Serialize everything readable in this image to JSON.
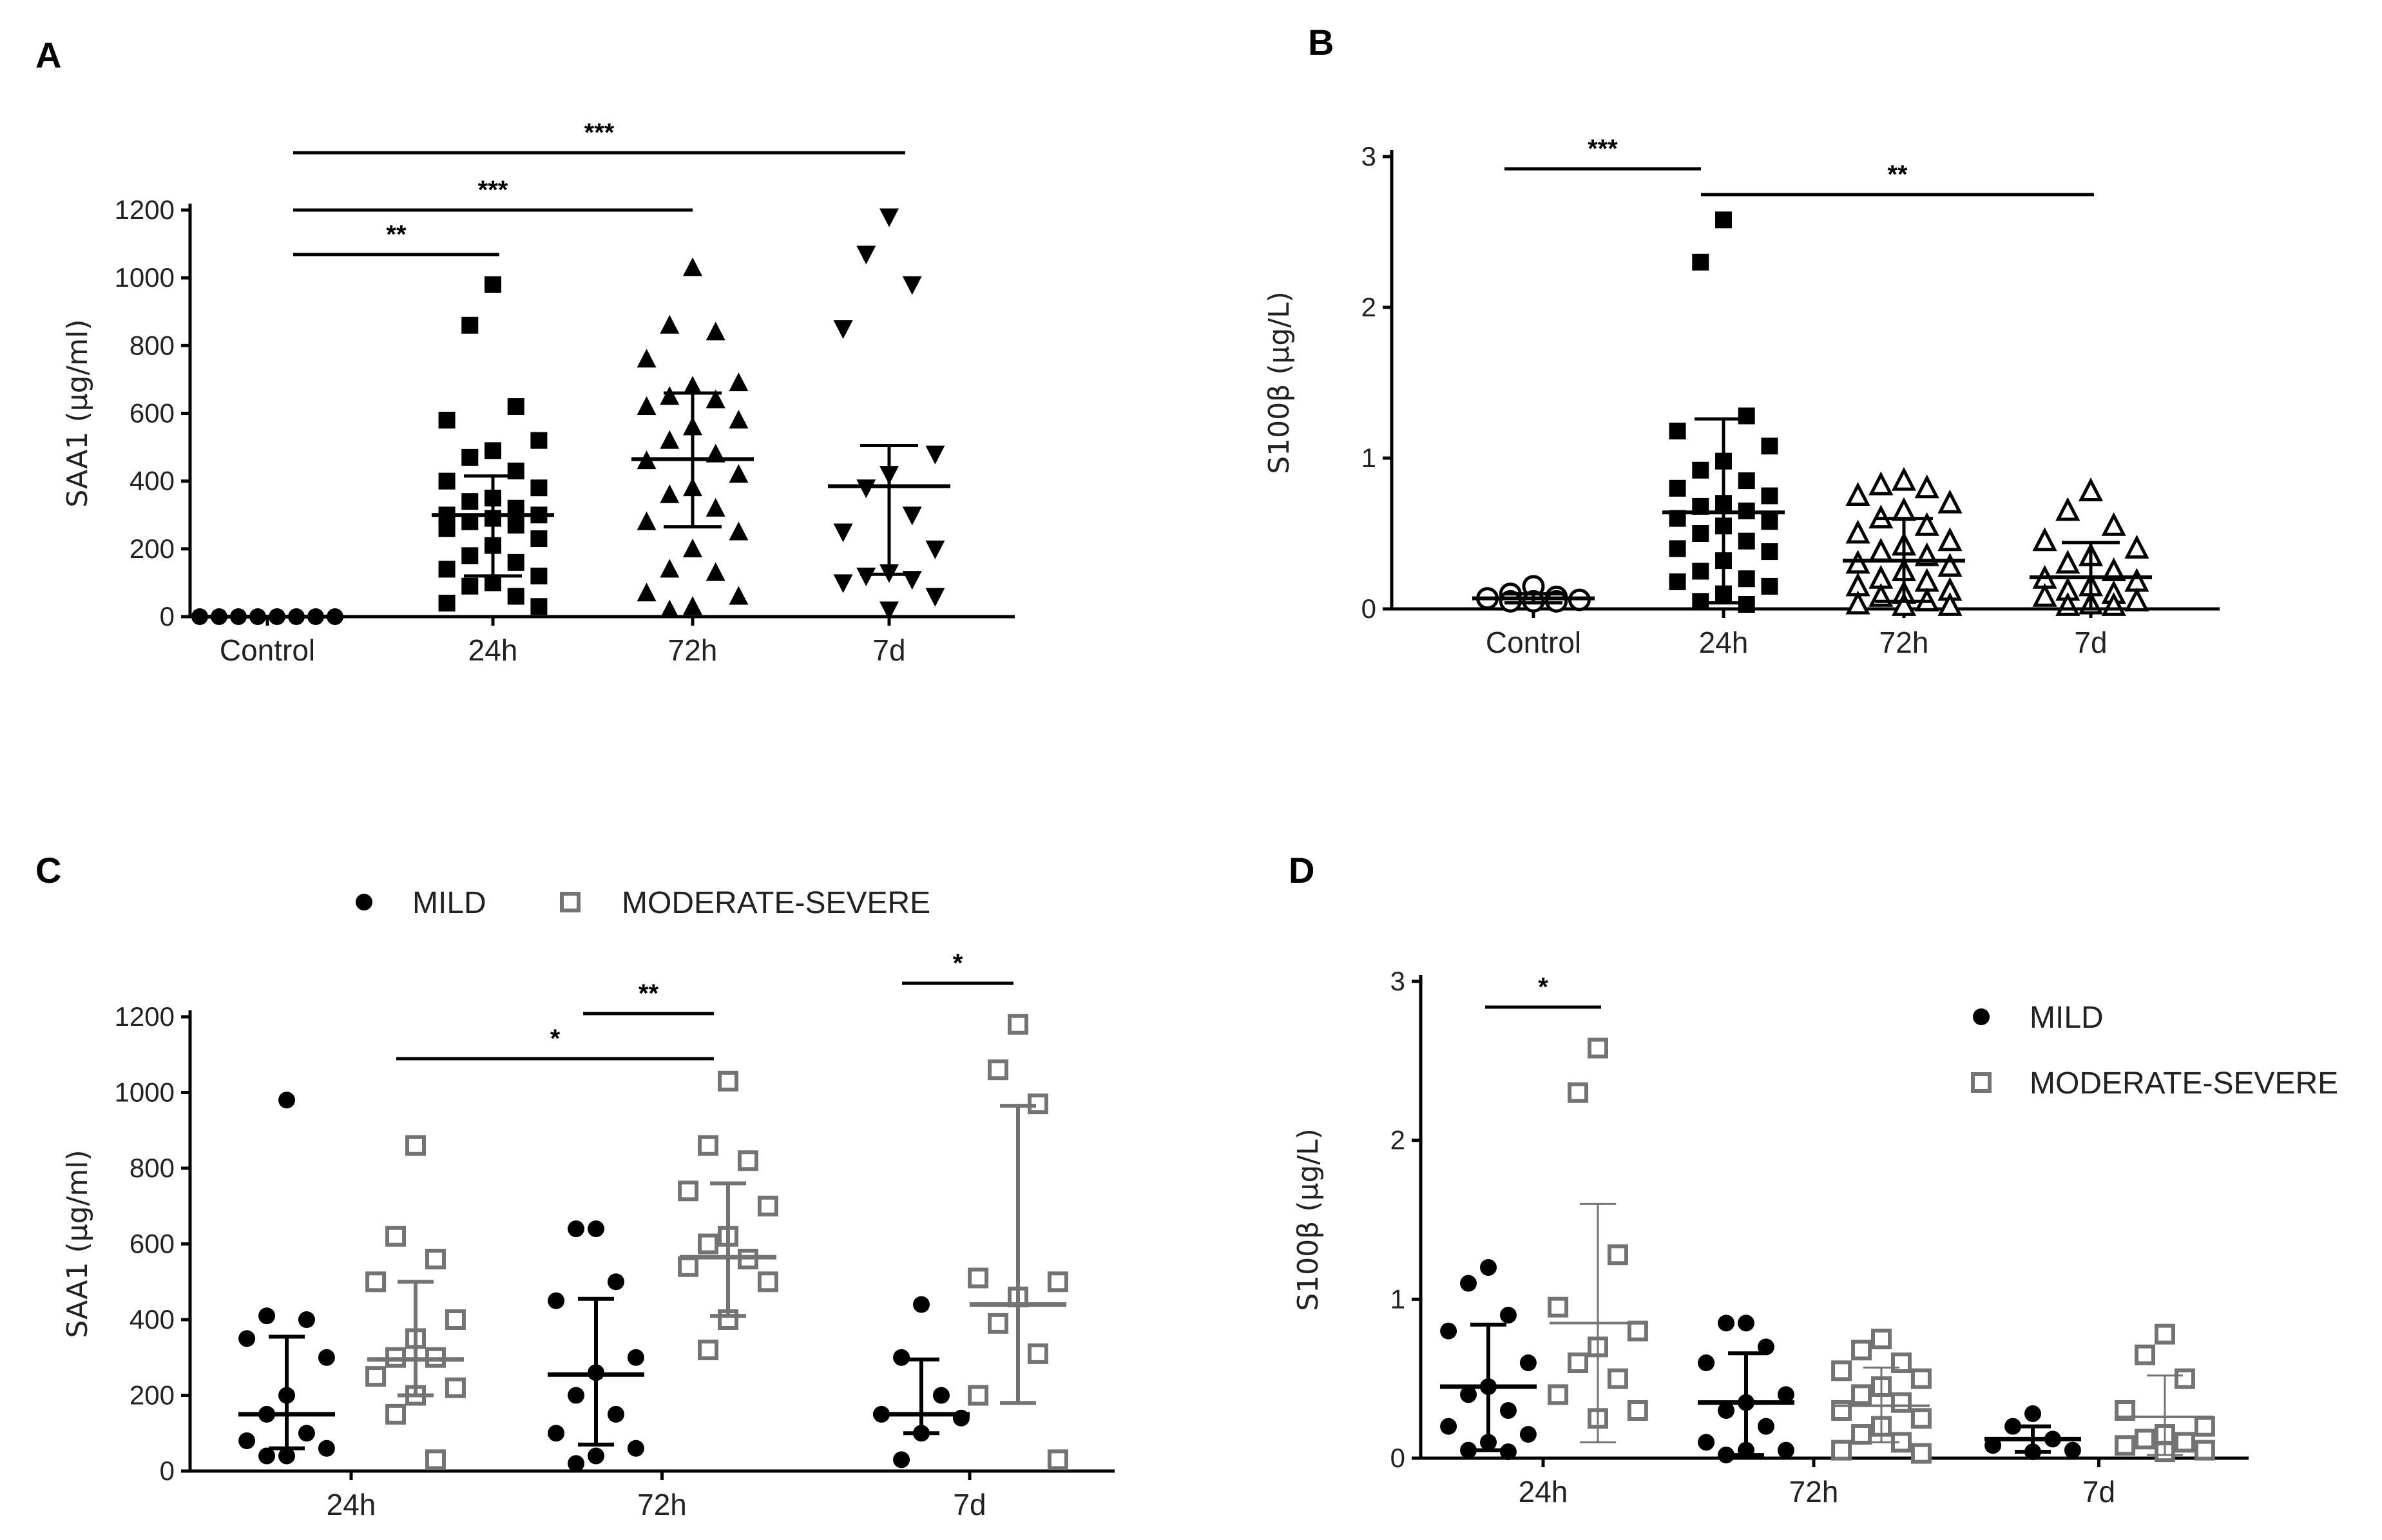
{
  "colors": {
    "black": "#000000",
    "gray": "#737373",
    "open_fill": "#ffffff"
  },
  "chart_data": [
    {
      "panel": "A",
      "type": "scatter",
      "ylabel": "SAA1 (μg/ml)",
      "categories": [
        "Control",
        "24h",
        "72h",
        "7d"
      ],
      "yticks": [
        "0",
        "200",
        "400",
        "600",
        "800",
        "1000",
        "1200"
      ],
      "ylim": [
        0,
        1200
      ],
      "markers": [
        "circle",
        "square",
        "triangle-up",
        "triangle-down"
      ],
      "values": [
        [
          0,
          0,
          0,
          0,
          0,
          0,
          0,
          0
        ],
        [
          980,
          860,
          620,
          580,
          520,
          490,
          470,
          430,
          400,
          380,
          350,
          340,
          320,
          300,
          300,
          290,
          280,
          270,
          260,
          230,
          210,
          180,
          160,
          140,
          120,
          100,
          90,
          60,
          40,
          30
        ],
        [
          1030,
          860,
          840,
          760,
          690,
          680,
          650,
          640,
          620,
          580,
          560,
          520,
          480,
          460,
          420,
          380,
          360,
          320,
          280,
          250,
          200,
          140,
          130,
          70,
          60,
          30,
          20
        ],
        [
          1180,
          1070,
          980,
          850,
          480,
          420,
          380,
          300,
          250,
          200,
          130,
          120,
          110,
          100,
          60,
          20
        ]
      ],
      "mean": [
        0,
        300,
        465,
        385
      ],
      "err_low": [
        0,
        120,
        265,
        125
      ],
      "err_high": [
        0,
        415,
        660,
        505
      ],
      "comparisons": [
        {
          "groups": [
            "Control",
            "24h"
          ],
          "label": "**"
        },
        {
          "groups": [
            "Control",
            "72h"
          ],
          "label": "***"
        },
        {
          "groups": [
            "Control",
            "7d"
          ],
          "label": "***"
        }
      ]
    },
    {
      "panel": "B",
      "type": "scatter",
      "ylabel": "S100β (μg/L)",
      "categories": [
        "Control",
        "24h",
        "72h",
        "7d"
      ],
      "yticks": [
        "0",
        "1",
        "2",
        "3"
      ],
      "ylim": [
        0,
        3
      ],
      "markers": [
        "circle-open",
        "square",
        "triangle-up-open",
        "triangle-up-open"
      ],
      "values": [
        [
          0.15,
          0.1,
          0.08,
          0.07,
          0.06,
          0.05,
          0.05,
          0.05
        ],
        [
          2.58,
          2.3,
          1.28,
          1.18,
          1.08,
          0.98,
          0.92,
          0.85,
          0.8,
          0.75,
          0.7,
          0.68,
          0.65,
          0.6,
          0.58,
          0.55,
          0.5,
          0.45,
          0.4,
          0.38,
          0.32,
          0.25,
          0.2,
          0.18,
          0.15,
          0.1,
          0.05,
          0.03
        ],
        [
          0.85,
          0.82,
          0.8,
          0.75,
          0.7,
          0.65,
          0.6,
          0.55,
          0.5,
          0.45,
          0.42,
          0.38,
          0.35,
          0.3,
          0.28,
          0.25,
          0.2,
          0.18,
          0.15,
          0.12,
          0.1,
          0.08,
          0.05,
          0.03,
          0.02,
          0.02
        ],
        [
          0.78,
          0.65,
          0.55,
          0.45,
          0.4,
          0.35,
          0.3,
          0.25,
          0.2,
          0.18,
          0.15,
          0.12,
          0.1,
          0.08,
          0.05,
          0.03,
          0.02,
          0.02
        ]
      ],
      "mean": [
        0.07,
        0.64,
        0.32,
        0.21
      ],
      "err_low": [
        0.04,
        0.04,
        0.05,
        0.0
      ],
      "err_high": [
        0.1,
        1.26,
        0.6,
        0.44
      ],
      "comparisons": [
        {
          "groups": [
            "Control",
            "24h"
          ],
          "label": "***"
        },
        {
          "groups": [
            "24h",
            "7d"
          ],
          "label": "**"
        }
      ]
    },
    {
      "panel": "C",
      "type": "scatter",
      "ylabel": "SAA1 (μg/ml)",
      "categories": [
        "24h",
        "72h",
        "7d"
      ],
      "yticks": [
        "0",
        "200",
        "400",
        "600",
        "800",
        "1000",
        "1200"
      ],
      "ylim": [
        0,
        1200
      ],
      "legend": {
        "entries": [
          "MILD",
          "MODERATE-SEVERE"
        ],
        "placement": "top"
      },
      "series": [
        {
          "name": "MILD",
          "marker": "circle",
          "color": "black",
          "values": [
            [
              980,
              410,
              400,
              350,
              300,
              200,
              150,
              100,
              80,
              60,
              40,
              40
            ],
            [
              640,
              640,
              500,
              450,
              300,
              260,
              200,
              150,
              100,
              60,
              40,
              20
            ],
            [
              440,
              300,
              200,
              150,
              140,
              100,
              30
            ]
          ],
          "mean": [
            150,
            255,
            150
          ],
          "err_low": [
            60,
            70,
            100
          ],
          "err_high": [
            355,
            455,
            295
          ]
        },
        {
          "name": "MODERATE-SEVERE",
          "marker": "square-open",
          "color": "gray",
          "values": [
            [
              860,
              620,
              560,
              500,
              400,
              350,
              300,
              300,
              250,
              220,
              200,
              150,
              30
            ],
            [
              1030,
              860,
              820,
              740,
              700,
              620,
              600,
              560,
              540,
              500,
              400,
              320
            ],
            [
              1180,
              1060,
              970,
              510,
              500,
              460,
              390,
              310,
              200,
              30
            ]
          ],
          "mean": [
            295,
            565,
            440
          ],
          "err_low": [
            200,
            410,
            180
          ],
          "err_high": [
            500,
            760,
            965
          ]
        }
      ],
      "comparisons": [
        {
          "groups": [
            "24h MODERATE-SEVERE",
            "72h MODERATE-SEVERE"
          ],
          "label": "*"
        },
        {
          "groups": [
            "72h MILD",
            "72h MODERATE-SEVERE"
          ],
          "label": "**"
        },
        {
          "groups": [
            "7d MILD",
            "7d MODERATE-SEVERE"
          ],
          "label": "*"
        }
      ]
    },
    {
      "panel": "D",
      "type": "scatter",
      "ylabel": "S100β (μg/L)",
      "categories": [
        "24h",
        "72h",
        "7d"
      ],
      "yticks": [
        "0",
        "1",
        "2",
        "3"
      ],
      "ylim": [
        0,
        3
      ],
      "legend": {
        "entries": [
          "MILD",
          "MODERATE-SEVERE"
        ],
        "placement": "right"
      },
      "series": [
        {
          "name": "MILD",
          "marker": "circle",
          "color": "black",
          "values": [
            [
              1.2,
              1.1,
              0.9,
              0.8,
              0.6,
              0.45,
              0.4,
              0.3,
              0.2,
              0.15,
              0.1,
              0.05,
              0.04
            ],
            [
              0.85,
              0.85,
              0.7,
              0.6,
              0.4,
              0.35,
              0.3,
              0.2,
              0.1,
              0.05,
              0.05,
              0.02
            ],
            [
              0.28,
              0.2,
              0.12,
              0.08,
              0.05,
              0.04
            ]
          ],
          "mean": [
            0.45,
            0.35,
            0.12
          ],
          "err_low": [
            0.05,
            0.02,
            0.04
          ],
          "err_high": [
            0.84,
            0.66,
            0.2
          ]
        },
        {
          "name": "MODERATE-SEVERE",
          "marker": "square-open",
          "color": "gray",
          "values": [
            [
              2.58,
              2.3,
              1.28,
              0.95,
              0.8,
              0.7,
              0.6,
              0.5,
              0.4,
              0.3,
              0.25
            ],
            [
              0.75,
              0.68,
              0.6,
              0.55,
              0.5,
              0.45,
              0.4,
              0.35,
              0.3,
              0.25,
              0.2,
              0.15,
              0.1,
              0.05,
              0.03
            ],
            [
              0.78,
              0.65,
              0.5,
              0.3,
              0.2,
              0.15,
              0.12,
              0.1,
              0.08,
              0.05,
              0.04
            ]
          ],
          "mean": [
            0.85,
            0.33,
            0.26
          ],
          "err_low": [
            0.1,
            0.1,
            0.02
          ],
          "err_high": [
            1.6,
            0.57,
            0.52
          ]
        }
      ],
      "comparisons": [
        {
          "groups": [
            "24h MILD",
            "24h MODERATE-SEVERE"
          ],
          "label": "*"
        }
      ]
    }
  ]
}
